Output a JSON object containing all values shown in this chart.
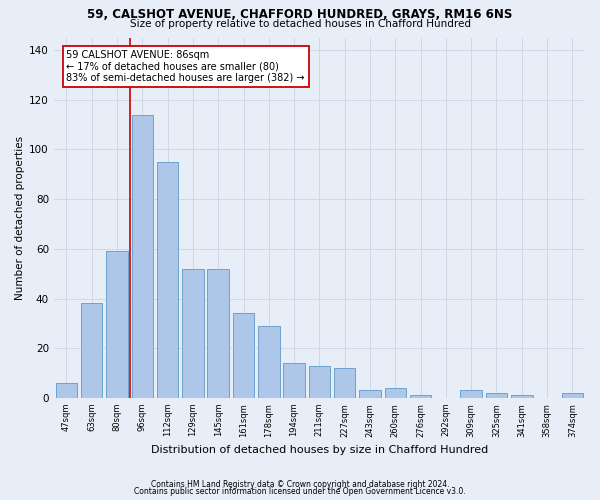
{
  "title1": "59, CALSHOT AVENUE, CHAFFORD HUNDRED, GRAYS, RM16 6NS",
  "title2": "Size of property relative to detached houses in Chafford Hundred",
  "xlabel": "Distribution of detached houses by size in Chafford Hundred",
  "ylabel": "Number of detached properties",
  "footnote1": "Contains HM Land Registry data © Crown copyright and database right 2024.",
  "footnote2": "Contains public sector information licensed under the Open Government Licence v3.0.",
  "categories": [
    "47sqm",
    "63sqm",
    "80sqm",
    "96sqm",
    "112sqm",
    "129sqm",
    "145sqm",
    "161sqm",
    "178sqm",
    "194sqm",
    "211sqm",
    "227sqm",
    "243sqm",
    "260sqm",
    "276sqm",
    "292sqm",
    "309sqm",
    "325sqm",
    "341sqm",
    "358sqm",
    "374sqm"
  ],
  "values": [
    6,
    38,
    59,
    114,
    95,
    52,
    52,
    34,
    29,
    14,
    13,
    12,
    3,
    4,
    1,
    0,
    3,
    2,
    1,
    0,
    2
  ],
  "bar_color": "#aec6e8",
  "bar_edge_color": "#5f99c8",
  "property_line_x": 2.5,
  "vline_color": "#cc0000",
  "annotation_title": "59 CALSHOT AVENUE: 86sqm",
  "annotation_line1": "← 17% of detached houses are smaller (80)",
  "annotation_line2": "83% of semi-detached houses are larger (382) →",
  "annotation_box_color": "#ffffff",
  "annotation_box_edge": "#cc0000",
  "ylim": [
    0,
    145
  ],
  "yticks": [
    0,
    20,
    40,
    60,
    80,
    100,
    120,
    140
  ],
  "grid_color": "#d0d8e8",
  "bg_color": "#e8eef8"
}
